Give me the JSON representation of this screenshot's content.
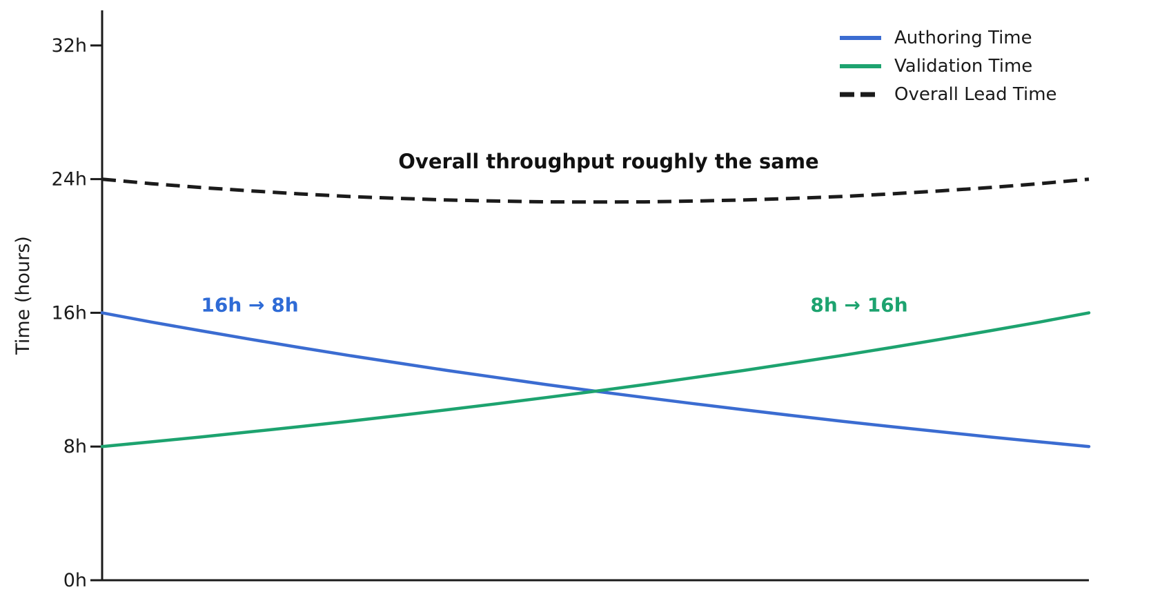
{
  "chart_data": {
    "type": "line",
    "title": "",
    "xlabel": "",
    "ylabel": "Time (hours)",
    "ylim": [
      0,
      34.1
    ],
    "x_range": [
      0,
      1
    ],
    "x_ticks_visible": false,
    "grid": false,
    "legend_position": "upper right",
    "axis_color": "#1a1a1a",
    "background_color": "#ffffff",
    "yticks": [
      {
        "value": 0,
        "label": "0h"
      },
      {
        "value": 8,
        "label": "8h"
      },
      {
        "value": 16,
        "label": "16h"
      },
      {
        "value": 24,
        "label": "24h"
      },
      {
        "value": 32,
        "label": "32h"
      }
    ],
    "series": [
      {
        "name": "Authoring Time",
        "color": "#3b6cd1",
        "style": "solid",
        "start_value_hours": 16,
        "end_value_hours": 8,
        "values": [
          16.0,
          15.45,
          14.93,
          14.42,
          13.93,
          13.45,
          13.0,
          12.55,
          12.13,
          11.71,
          11.31,
          10.93,
          10.56,
          10.2,
          9.85,
          9.51,
          9.19,
          8.88,
          8.57,
          8.28,
          8.0
        ]
      },
      {
        "name": "Validation Time",
        "color": "#1da36f",
        "style": "solid",
        "start_value_hours": 8,
        "end_value_hours": 16,
        "values": [
          8.0,
          8.28,
          8.57,
          8.88,
          9.19,
          9.51,
          9.85,
          10.2,
          10.56,
          10.93,
          11.31,
          11.71,
          12.13,
          12.55,
          13.0,
          13.45,
          13.93,
          14.42,
          14.93,
          15.45,
          16.0
        ]
      },
      {
        "name": "Overall Lead Time",
        "color": "#1b1b1b",
        "style": "dashed",
        "start_value_hours": 24,
        "end_value_hours": 24,
        "values": [
          24.0,
          23.73,
          23.5,
          23.3,
          23.12,
          22.96,
          22.85,
          22.75,
          22.69,
          22.64,
          22.63,
          22.64,
          22.69,
          22.75,
          22.85,
          22.96,
          23.12,
          23.3,
          23.5,
          23.73,
          24.0
        ]
      }
    ],
    "annotations": [
      {
        "text": "Overall throughput roughly the same",
        "color": "#111111"
      },
      {
        "text": "16h → 8h",
        "color": "#2f6bd6"
      },
      {
        "text": "8h → 16h",
        "color": "#1da36f"
      }
    ]
  }
}
